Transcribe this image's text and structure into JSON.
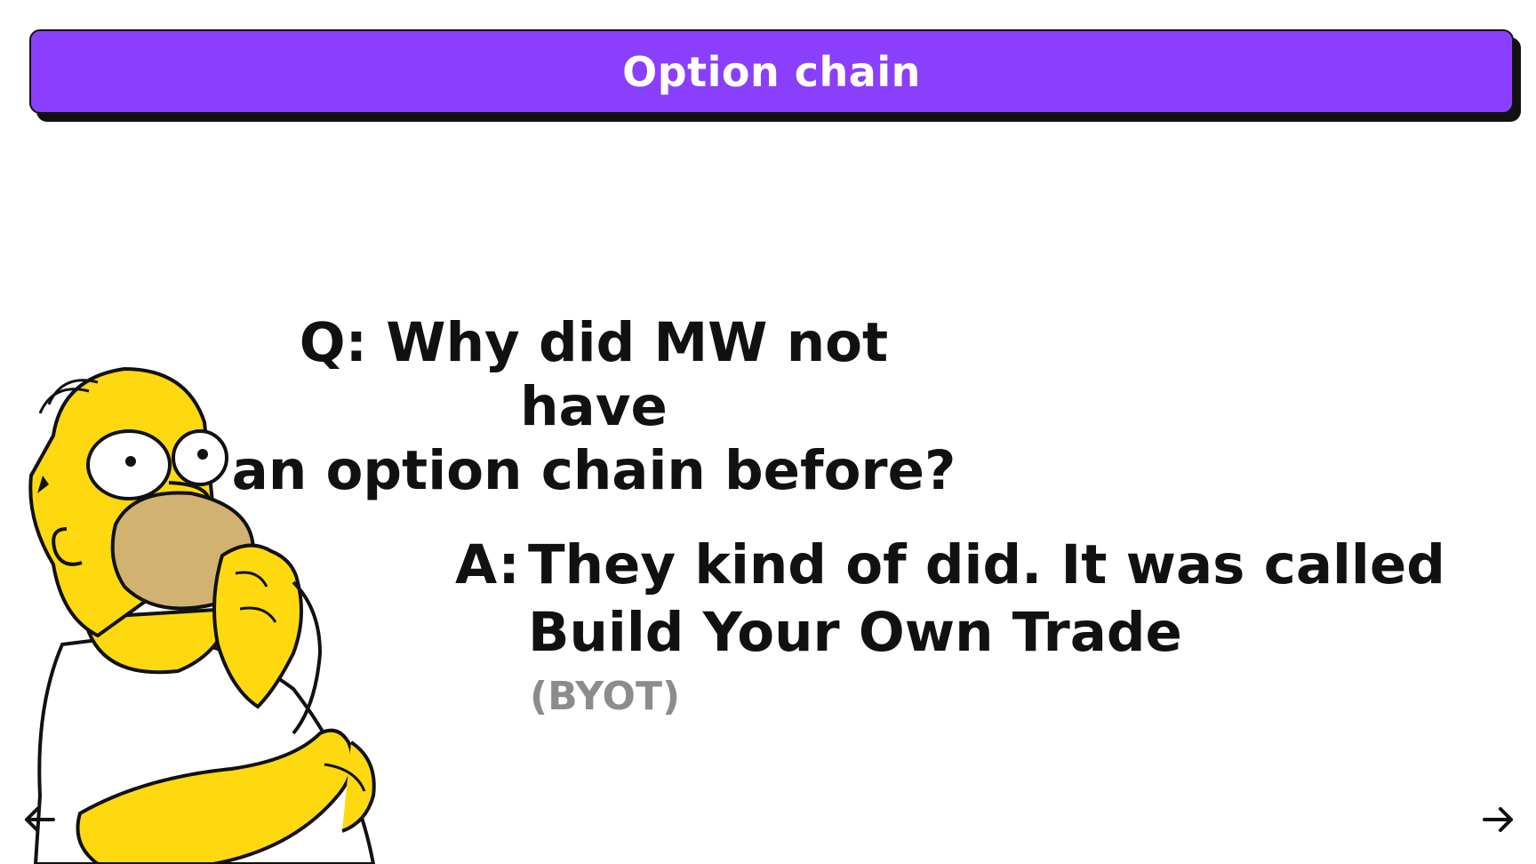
{
  "header": {
    "title": "Option chain"
  },
  "question": {
    "line1": "Q: Why did MW not have",
    "line2": "an option chain before?"
  },
  "answer": {
    "prefix": "A:",
    "line1": "They kind of did. It was called",
    "line2": "Build Your Own Trade",
    "note": "(BYOT)"
  },
  "navigation": {
    "prev_icon": "arrow-left-icon",
    "next_icon": "arrow-right-icon"
  },
  "colors": {
    "banner": "#8a3ffc",
    "banner_text": "#ffffff",
    "body_text": "#111111",
    "note_text": "#8c8c8c",
    "cartoon_skin": "#ffd90f",
    "cartoon_muzzle": "#d1b271"
  }
}
